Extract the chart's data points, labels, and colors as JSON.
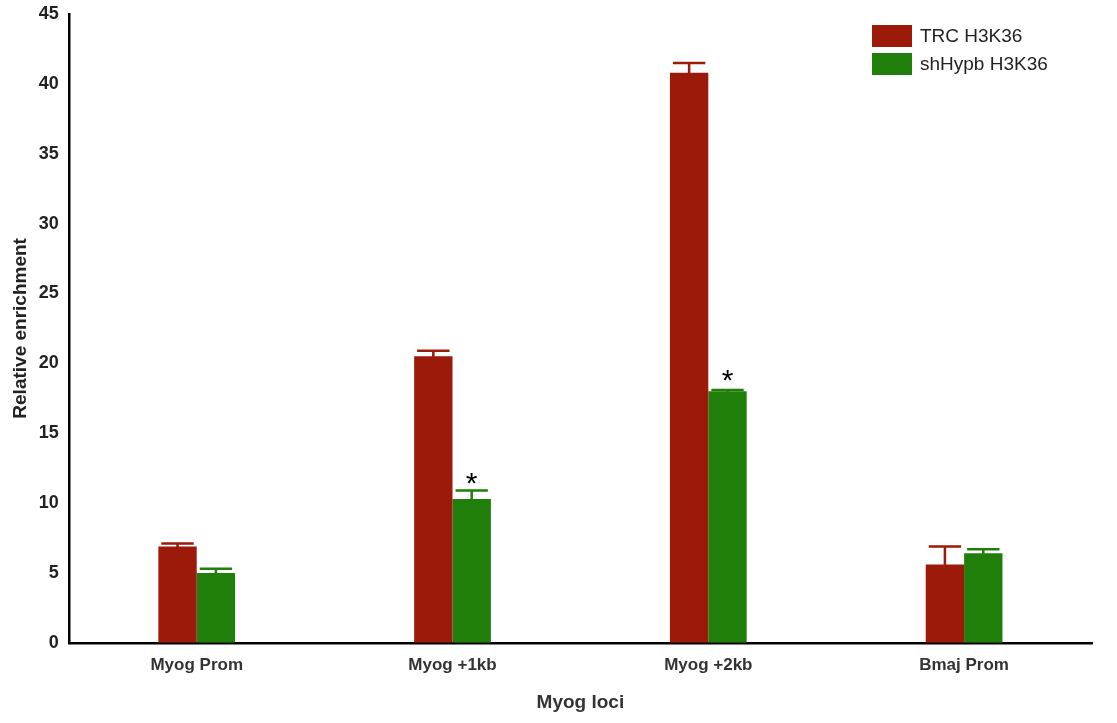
{
  "chart_data": {
    "type": "bar",
    "xlabel": "Myog loci",
    "ylabel": "Relative enrichment",
    "categories": [
      "Myog Prom",
      "Myog +1kb",
      "Myog +2kb",
      "Bmaj Prom"
    ],
    "series": [
      {
        "name": "TRC H3K36",
        "color": "#9b1a0a",
        "values": [
          6.9,
          20.5,
          40.8,
          5.6
        ],
        "errors": [
          0.2,
          0.4,
          0.7,
          1.3
        ]
      },
      {
        "name": "shHypb H3K36",
        "color": "#1f7f0a",
        "values": [
          5.0,
          10.3,
          18.0,
          6.4
        ],
        "errors": [
          0.3,
          0.6,
          0.1,
          0.3
        ]
      }
    ],
    "ylim": [
      0,
      45
    ],
    "yticks": [
      0,
      5,
      10,
      15,
      20,
      25,
      30,
      35,
      40,
      45
    ],
    "grid": false,
    "legend": "top right",
    "annotations": [
      {
        "text": "*",
        "x": "Myog +1kb",
        "y": 11.6
      },
      {
        "text": "*",
        "x": "Myog +2kb",
        "y": 19.0
      }
    ]
  }
}
